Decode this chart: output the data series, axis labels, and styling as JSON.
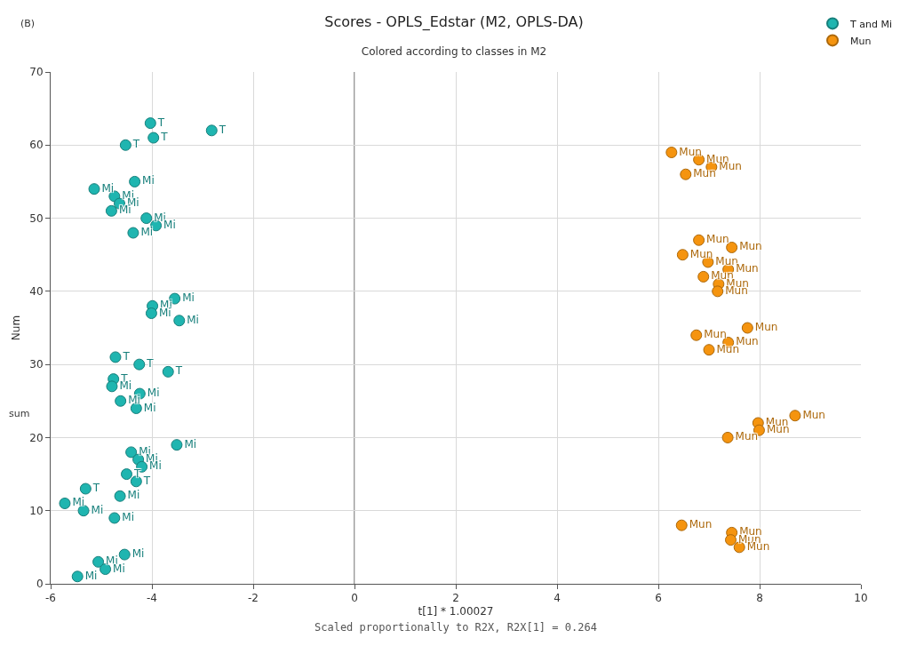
{
  "chart_data": {
    "type": "scatter",
    "title": "Scores - OPLS_Edstar (M2, OPLS-DA)",
    "subtitle": "Colored according to classes in M2",
    "xlabel": "t[1] * 1.00027",
    "ylabel": "Num",
    "annotations": [
      "(B)",
      "sum",
      "Scaled proportionally to R2X, R2X[1] = 0.264"
    ],
    "xlim": [
      -6,
      10
    ],
    "xticks": [
      -6,
      -4,
      -2,
      0,
      2,
      4,
      6,
      8,
      10
    ],
    "ylim": [
      0,
      70
    ],
    "yticks": [
      0,
      10,
      20,
      30,
      40,
      50,
      60,
      70
    ],
    "grid": true,
    "legend": "top right",
    "marker": "circle",
    "ref_lines": [
      {
        "axis": "x",
        "value": 0,
        "color": "#555555"
      }
    ],
    "series": [
      {
        "name": "T and Mi",
        "color": "#1fb5b0",
        "x": [
          -4.03,
          -2.82,
          -3.97,
          -4.52,
          -4.34,
          -5.14,
          -4.74,
          -4.64,
          -4.8,
          -4.11,
          -3.92,
          -4.37,
          -3.55,
          -3.99,
          -4.01,
          -3.46,
          -4.72,
          -4.25,
          -3.68,
          -4.76,
          -4.79,
          -4.24,
          -4.62,
          -4.31,
          -3.51,
          -4.41,
          -4.27,
          -4.2,
          -4.5,
          -4.31,
          -5.31,
          -4.63,
          -5.72,
          -5.35,
          -4.74,
          -4.54,
          -5.06,
          -4.92,
          -5.47
        ],
        "values": [
          63,
          62,
          61,
          60,
          55,
          54,
          53,
          52,
          51,
          50,
          49,
          48,
          39,
          38,
          37,
          36,
          31,
          30,
          29,
          28,
          27,
          26,
          25,
          24,
          19,
          18,
          17,
          16,
          15,
          14,
          13,
          12,
          11,
          10,
          9,
          4,
          3,
          2,
          1
        ],
        "value_labels": [
          "T",
          "T",
          "T",
          "T",
          "Mi",
          "Mi",
          "Mi",
          "Mi",
          "Mi",
          "Mi",
          "Mi",
          "Mi",
          "Mi",
          "Mi",
          "Mi",
          "Mi",
          "T",
          "T",
          "T",
          "T",
          "Mi",
          "Mi",
          "Mi",
          "Mi",
          "Mi",
          "Mi",
          "Mi",
          "Mi",
          "T",
          "T",
          "T",
          "Mi",
          "Mi",
          "Mi",
          "Mi",
          "Mi",
          "Mi",
          "Mi",
          "Mi"
        ]
      },
      {
        "name": "Mun",
        "color": "#f5940f",
        "x": [
          6.26,
          6.8,
          7.05,
          6.54,
          6.8,
          7.45,
          6.48,
          6.98,
          7.38,
          6.89,
          7.19,
          7.17,
          7.76,
          6.75,
          7.38,
          7.0,
          8.7,
          7.97,
          7.99,
          7.37,
          6.46,
          7.45,
          7.43,
          7.6
        ],
        "values": [
          59,
          58,
          57,
          56,
          47,
          46,
          45,
          44,
          43,
          42,
          41,
          40,
          35,
          34,
          33,
          32,
          23,
          22,
          21,
          20,
          8,
          7,
          6,
          5
        ],
        "value_labels": [
          "Mun",
          "Mun",
          "Mun",
          "Mun",
          "Mun",
          "Mun",
          "Mun",
          "Mun",
          "Mun",
          "Mun",
          "Mun",
          "Mun",
          "Mun",
          "Mun",
          "Mun",
          "Mun",
          "Mun",
          "Mun",
          "Mun",
          "Mun",
          "Mun",
          "Mun",
          "Mun",
          "Mun"
        ]
      }
    ]
  }
}
